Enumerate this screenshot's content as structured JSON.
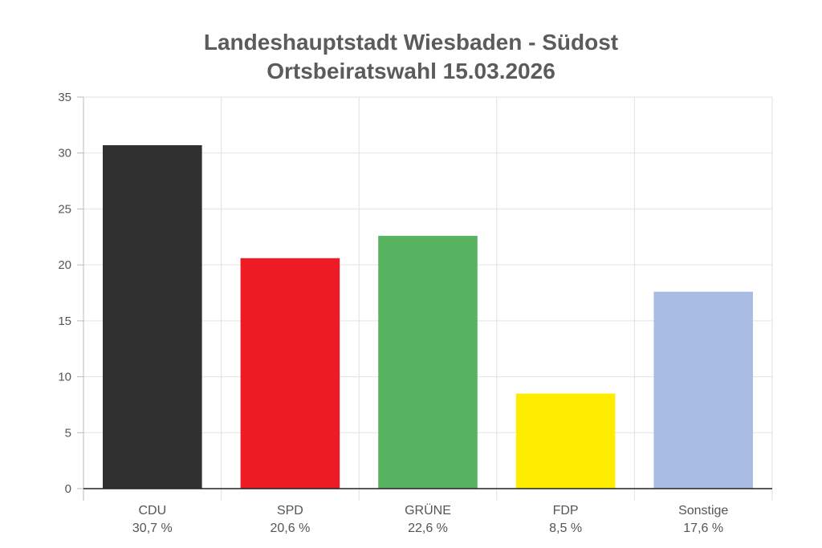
{
  "chart_data": {
    "type": "bar",
    "title": [
      "Landeshauptstadt Wiesbaden - Südost",
      "Ortsbeiratswahl 15.03.2026"
    ],
    "categories": [
      "CDU",
      "SPD",
      "GRÜNE",
      "FDP",
      "Sonstige"
    ],
    "values": [
      30.7,
      20.6,
      22.6,
      8.5,
      17.6
    ],
    "value_labels": [
      "30,7 %",
      "20,6 %",
      "22,6 %",
      "8,5 %",
      "17,6 %"
    ],
    "colors": [
      "#303030",
      "#ed1c24",
      "#58b360",
      "#ffed00",
      "#a9bde2"
    ],
    "ylim": [
      0,
      35
    ],
    "yticks": [
      0,
      5,
      10,
      15,
      20,
      25,
      30,
      35
    ],
    "grid": true,
    "xlabel": "",
    "ylabel": ""
  }
}
